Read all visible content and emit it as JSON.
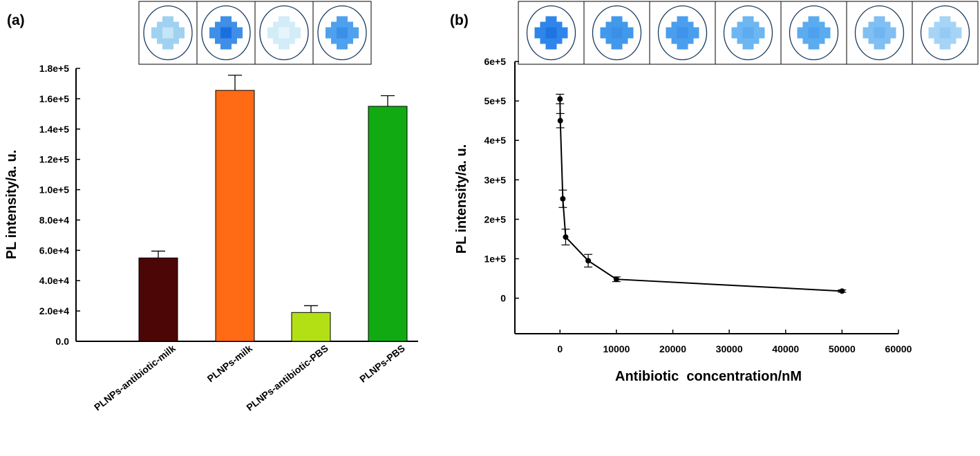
{
  "chart_data": [
    {
      "panel_label": "(a)",
      "type": "bar",
      "ylabel": "PL intensity/a. u.",
      "ylim": [
        0,
        180000
      ],
      "yticks": [
        "0.0",
        "2.0e+4",
        "4.0e+4",
        "6.0e+4",
        "8.0e+4",
        "1.0e+5",
        "1.2e+5",
        "1.4e+5",
        "1.6e+5",
        "1.8e+5"
      ],
      "categories": [
        "PLNPs-antibiotic-milk",
        "PLNPs-milk",
        "PLNPs-antibiotic-PBS",
        "PLNPs-PBS"
      ],
      "values": [
        55000,
        165500,
        19000,
        155000
      ],
      "errors": [
        4500,
        10000,
        4500,
        7000
      ],
      "bar_colors": [
        "#4d0606",
        "#ff6a14",
        "#b3e015",
        "#12aa12"
      ],
      "images": [
        {
          "icon": "luminescent-spot",
          "color": "#9fd2f0",
          "core": "#c4e4f7"
        },
        {
          "icon": "luminescent-spot",
          "color": "#3f8fe8",
          "core": "#1a6fe0"
        },
        {
          "icon": "luminescent-spot",
          "color": "#d2ecf8",
          "core": "#e6f5fb"
        },
        {
          "icon": "luminescent-spot",
          "color": "#4ea1ee",
          "core": "#3a90e8"
        }
      ]
    },
    {
      "panel_label": "(b)",
      "type": "line",
      "xlabel": "Antibiotic  concentration/nM",
      "ylabel": "PL intensity/a. u.",
      "xlim": [
        -8000,
        60000
      ],
      "ylim": [
        -90000,
        600000
      ],
      "xticks": [
        "0",
        "10000",
        "20000",
        "30000",
        "40000",
        "50000",
        "60000"
      ],
      "yticks": [
        "0",
        "1e+5",
        "2e+5",
        "3e+5",
        "4e+5",
        "5e+5",
        "6e+5"
      ],
      "x": [
        0,
        50,
        500,
        1000,
        5000,
        10000,
        50000
      ],
      "y": [
        505000,
        450000,
        252000,
        155000,
        95000,
        48000,
        18000
      ],
      "errors": [
        12000,
        18000,
        22000,
        20000,
        16000,
        6000,
        3000
      ],
      "images": [
        {
          "icon": "luminescent-spot",
          "color": "#2f86ea",
          "core": "#1f74e3"
        },
        {
          "icon": "luminescent-spot",
          "color": "#4199ec",
          "core": "#3a90e8"
        },
        {
          "icon": "luminescent-spot",
          "color": "#4a9eee",
          "core": "#3f93ea"
        },
        {
          "icon": "luminescent-spot",
          "color": "#6cb6f2",
          "core": "#5eabf0"
        },
        {
          "icon": "luminescent-spot",
          "color": "#5aabf0",
          "core": "#4ea1ee"
        },
        {
          "icon": "luminescent-spot",
          "color": "#7fbff3",
          "core": "#6fb5f1"
        },
        {
          "icon": "luminescent-spot",
          "color": "#a6d4f6",
          "core": "#94cbf5"
        }
      ]
    }
  ]
}
